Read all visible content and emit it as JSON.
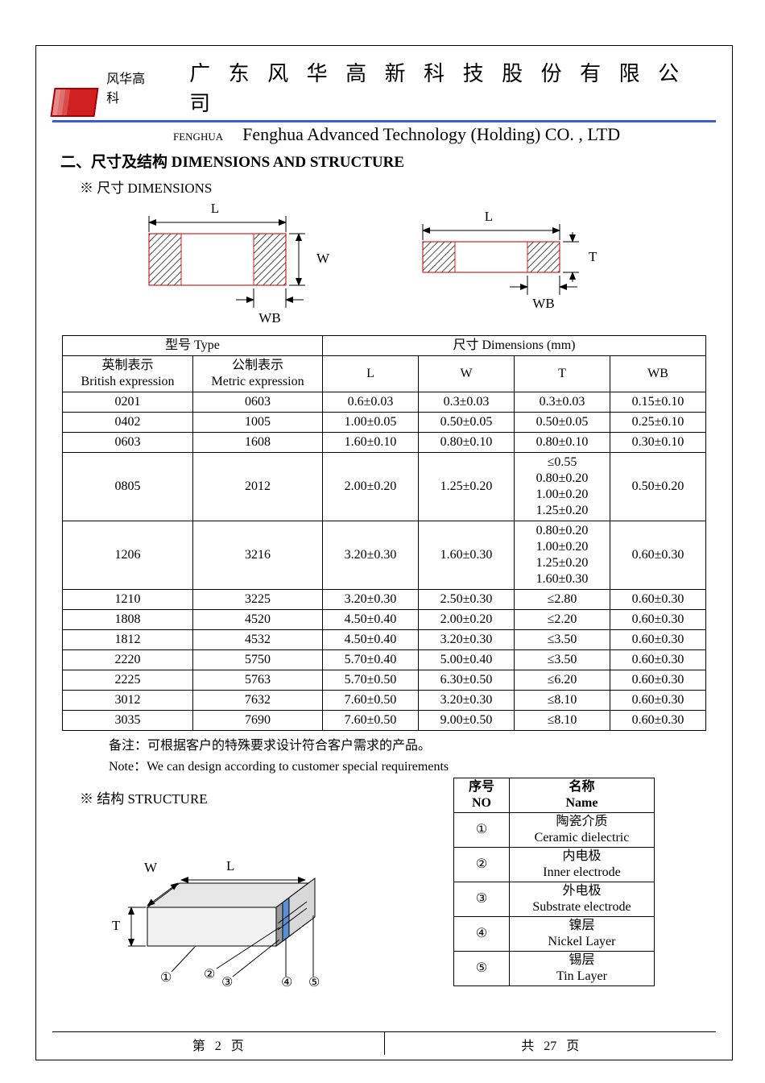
{
  "header": {
    "brand_cn": "风华高科",
    "company_cn": "广 东 风 华 高 新 科 技 股 份 有 限 公 司",
    "fenghua_en": "FENGHUA",
    "company_en": "Fenghua Advanced Technology (Holding) CO. , LTD",
    "accent_color": "#3b5ed0",
    "logo_color": "#d02020"
  },
  "section": {
    "title": "二、尺寸及结构   DIMENSIONS AND STRUCTURE",
    "dims_sub": "※ 尺寸 DIMENSIONS",
    "struct_sub": "※ 结构 STRUCTURE"
  },
  "diagram1": {
    "L": "L",
    "W": "W",
    "WB": "WB"
  },
  "diagram2": {
    "L": "L",
    "T": "T",
    "WB": "WB"
  },
  "diagram3d": {
    "W": "W",
    "L": "L",
    "T": "T",
    "n1": "①",
    "n2": "②",
    "n3": "③",
    "n4": "④",
    "n5": "⑤"
  },
  "dim_table": {
    "hdr_type": "型号 Type",
    "hdr_dims": "尺寸     Dimensions     (mm)",
    "hdr_brit_cn": "英制表示",
    "hdr_brit_en": "British expression",
    "hdr_metr_cn": "公制表示",
    "hdr_metr_en": "Metric expression",
    "col_L": "L",
    "col_W": "W",
    "col_T": "T",
    "col_WB": "WB",
    "rows": [
      {
        "b": "0201",
        "m": "0603",
        "L": "0.6±0.03",
        "W": "0.3±0.03",
        "T": "0.3±0.03",
        "WB": "0.15±0.10"
      },
      {
        "b": "0402",
        "m": "1005",
        "L": "1.00±0.05",
        "W": "0.50±0.05",
        "T": "0.50±0.05",
        "WB": "0.25±0.10"
      },
      {
        "b": "0603",
        "m": "1608",
        "L": "1.60±0.10",
        "W": "0.80±0.10",
        "T": "0.80±0.10",
        "WB": "0.30±0.10"
      },
      {
        "b": "0805",
        "m": "2012",
        "L": "2.00±0.20",
        "W": "1.25±0.20",
        "T": "≤0.55\n0.80±0.20\n1.00±0.20\n1.25±0.20",
        "WB": "0.50±0.20"
      },
      {
        "b": "1206",
        "m": "3216",
        "L": "3.20±0.30",
        "W": "1.60±0.30",
        "T": "0.80±0.20\n1.00±0.20\n1.25±0.20\n1.60±0.30",
        "WB": "0.60±0.30"
      },
      {
        "b": "1210",
        "m": "3225",
        "L": "3.20±0.30",
        "W": "2.50±0.30",
        "T": "≤2.80",
        "WB": "0.60±0.30"
      },
      {
        "b": "1808",
        "m": "4520",
        "L": "4.50±0.40",
        "W": "2.00±0.20",
        "T": "≤2.20",
        "WB": "0.60±0.30"
      },
      {
        "b": "1812",
        "m": "4532",
        "L": "4.50±0.40",
        "W": "3.20±0.30",
        "T": "≤3.50",
        "WB": "0.60±0.30"
      },
      {
        "b": "2220",
        "m": "5750",
        "L": "5.70±0.40",
        "W": "5.00±0.40",
        "T": "≤3.50",
        "WB": "0.60±0.30"
      },
      {
        "b": "2225",
        "m": "5763",
        "L": "5.70±0.50",
        "W": "6.30±0.50",
        "T": "≤6.20",
        "WB": "0.60±0.30"
      },
      {
        "b": "3012",
        "m": "7632",
        "L": "7.60±0.50",
        "W": "3.20±0.30",
        "T": "≤8.10",
        "WB": "0.60±0.30"
      },
      {
        "b": "3035",
        "m": "7690",
        "L": "7.60±0.50",
        "W": "9.00±0.50",
        "T": "≤8.10",
        "WB": "0.60±0.30"
      }
    ]
  },
  "notes": {
    "cn": "备注：可根据客户的特殊要求设计符合客户需求的产品。",
    "en": "Note：We can design according to customer special requirements"
  },
  "struct_table": {
    "hdr_no_cn": "序号",
    "hdr_no_en": "NO",
    "hdr_name_cn": "名称",
    "hdr_name_en": "Name",
    "rows": [
      {
        "no": "①",
        "cn": "陶瓷介质",
        "en": "Ceramic   dielectric"
      },
      {
        "no": "②",
        "cn": "内电极",
        "en": "Inner   electrode"
      },
      {
        "no": "③",
        "cn": "外电极",
        "en": "Substrate   electrode"
      },
      {
        "no": "④",
        "cn": "镍层",
        "en": "Nickel Layer"
      },
      {
        "no": "⑤",
        "cn": "锡层",
        "en": "Tin Layer"
      }
    ]
  },
  "footer": {
    "left_prefix": "第",
    "page": "2",
    "left_suffix": "页",
    "right_prefix": "共",
    "total": "27",
    "right_suffix": "页"
  },
  "style": {
    "border_color": "#000000",
    "hatch_color": "#000000",
    "body_fill": "#ffffff",
    "cap_body": "#e6e6e6",
    "cap_dark": "#9a9a9a",
    "cap_blue": "#5a8fd6",
    "font_size_body": 17,
    "font_size_title": 26
  }
}
